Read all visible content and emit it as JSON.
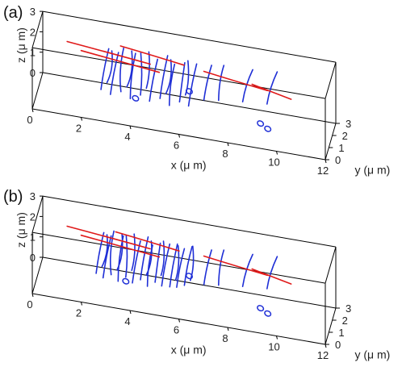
{
  "chart_data": [
    {
      "type": "line",
      "panel_label": "(a)",
      "xlabel": "x (μ m)",
      "ylabel": "y (μ m)",
      "zlabel": "z (μ m)",
      "xlim": [
        0,
        12
      ],
      "ylim": [
        0,
        3
      ],
      "zlim": [
        0,
        3
      ],
      "x_ticks": [
        "0",
        "2",
        "4",
        "6",
        "8",
        "10",
        "12"
      ],
      "y_ticks": [
        "0",
        "1",
        "2",
        "3"
      ],
      "z_ticks": [
        "0",
        "1",
        "2",
        "3"
      ],
      "colors": {
        "blue": "#1f2fd6",
        "red": "#e01a1a"
      },
      "blue_strands": [
        [
          [
            2.6,
            1.5,
            0.6
          ],
          [
            2.7,
            1.5,
            1.6
          ],
          [
            2.9,
            1.6,
            2.6
          ]
        ],
        [
          [
            3.0,
            1.4,
            0.5
          ],
          [
            3.1,
            1.5,
            1.5
          ],
          [
            3.3,
            1.6,
            2.5
          ]
        ],
        [
          [
            3.4,
            1.6,
            0.6
          ],
          [
            3.3,
            1.6,
            1.6
          ],
          [
            3.5,
            1.7,
            2.7
          ]
        ],
        [
          [
            3.8,
            1.5,
            0.4
          ],
          [
            3.8,
            1.5,
            1.5
          ],
          [
            4.0,
            1.6,
            2.6
          ]
        ],
        [
          [
            4.2,
            1.6,
            0.6
          ],
          [
            4.3,
            1.6,
            1.6
          ],
          [
            4.2,
            1.7,
            2.6
          ]
        ],
        [
          [
            4.6,
            1.4,
            0.5
          ],
          [
            4.7,
            1.5,
            1.5
          ],
          [
            4.9,
            1.6,
            2.5
          ]
        ],
        [
          [
            5.0,
            1.6,
            0.6
          ],
          [
            5.1,
            1.6,
            1.6
          ],
          [
            5.3,
            1.7,
            2.7
          ]
        ],
        [
          [
            5.4,
            1.5,
            0.4
          ],
          [
            5.4,
            1.5,
            1.4
          ],
          [
            5.6,
            1.6,
            2.4
          ]
        ],
        [
          [
            5.8,
            1.6,
            0.6
          ],
          [
            5.9,
            1.6,
            1.6
          ],
          [
            6.0,
            1.7,
            2.5
          ]
        ],
        [
          [
            6.2,
            1.4,
            0.6
          ],
          [
            6.3,
            1.5,
            1.6
          ],
          [
            6.5,
            1.6,
            2.6
          ]
        ],
        [
          [
            2.8,
            1.8,
            0.8
          ],
          [
            3.1,
            1.7,
            1.6
          ],
          [
            3.0,
            1.8,
            2.4
          ]
        ],
        [
          [
            3.6,
            1.9,
            0.7
          ],
          [
            3.9,
            1.8,
            1.5
          ],
          [
            3.8,
            1.9,
            2.5
          ]
        ],
        [
          [
            4.4,
            1.9,
            0.8
          ],
          [
            4.6,
            1.8,
            1.7
          ],
          [
            4.5,
            1.9,
            2.6
          ]
        ],
        [
          [
            5.2,
            1.9,
            0.7
          ],
          [
            5.5,
            1.8,
            1.5
          ],
          [
            5.4,
            1.9,
            2.4
          ]
        ],
        [
          [
            6.0,
            1.9,
            0.8
          ],
          [
            6.2,
            1.8,
            1.6
          ],
          [
            6.1,
            1.9,
            2.5
          ]
        ],
        [
          [
            6.8,
            1.6,
            0.9
          ],
          [
            6.9,
            1.6,
            1.8
          ],
          [
            7.1,
            1.7,
            2.6
          ]
        ],
        [
          [
            7.4,
            1.6,
            1.0
          ],
          [
            7.4,
            1.7,
            1.9
          ],
          [
            7.6,
            1.7,
            2.7
          ]
        ],
        [
          [
            8.4,
            1.5,
            1.2
          ],
          [
            8.5,
            1.6,
            2.0
          ],
          [
            8.8,
            1.6,
            2.8
          ]
        ],
        [
          [
            9.4,
            1.5,
            1.3
          ],
          [
            9.5,
            1.5,
            2.1
          ],
          [
            9.8,
            1.6,
            2.9
          ]
        ]
      ],
      "red_strands": [
        [
          [
            1.2,
            1.6,
            2.6
          ],
          [
            3.0,
            1.6,
            2.4
          ],
          [
            4.6,
            1.6,
            2.2
          ]
        ],
        [
          [
            1.8,
            1.4,
            2.4
          ],
          [
            3.4,
            1.4,
            2.2
          ],
          [
            5.0,
            1.4,
            2.0
          ]
        ],
        [
          [
            3.4,
            1.5,
            2.9
          ],
          [
            4.8,
            1.5,
            2.7
          ],
          [
            6.0,
            1.5,
            2.5
          ]
        ],
        [
          [
            6.8,
            1.6,
            2.3
          ],
          [
            8.0,
            1.6,
            2.1
          ],
          [
            9.4,
            1.6,
            1.9
          ]
        ],
        [
          [
            8.8,
            1.4,
            2.2
          ],
          [
            9.6,
            1.4,
            2.0
          ],
          [
            10.4,
            1.4,
            1.8
          ]
        ]
      ],
      "blue_loops": [
        [
          4.0,
          1.6,
          0.4
        ],
        [
          6.2,
          1.6,
          1.2
        ],
        [
          9.2,
          1.0,
          0.6
        ],
        [
          9.5,
          1.0,
          0.4
        ]
      ]
    },
    {
      "type": "line",
      "panel_label": "(b)",
      "xlabel": "x (μ m)",
      "ylabel": "y (μ m)",
      "zlabel": "z (μ m)",
      "xlim": [
        0,
        12
      ],
      "ylim": [
        0,
        3
      ],
      "zlim": [
        0,
        3
      ],
      "x_ticks": [
        "0",
        "2",
        "4",
        "6",
        "8",
        "10",
        "12"
      ],
      "y_ticks": [
        "0",
        "1",
        "2",
        "3"
      ],
      "z_ticks": [
        "0",
        "1",
        "2",
        "3"
      ],
      "colors": {
        "blue": "#1f2fd6",
        "red": "#e01a1a"
      },
      "blue_strands": [
        [
          [
            2.4,
            1.5,
            0.6
          ],
          [
            2.5,
            1.5,
            1.6
          ],
          [
            2.7,
            1.6,
            2.6
          ]
        ],
        [
          [
            2.7,
            1.4,
            0.5
          ],
          [
            2.8,
            1.5,
            1.5
          ],
          [
            3.0,
            1.6,
            2.5
          ]
        ],
        [
          [
            3.0,
            1.6,
            0.6
          ],
          [
            2.9,
            1.6,
            1.6
          ],
          [
            3.1,
            1.7,
            2.7
          ]
        ],
        [
          [
            3.3,
            1.5,
            0.4
          ],
          [
            3.3,
            1.5,
            1.5
          ],
          [
            3.5,
            1.6,
            2.6
          ]
        ],
        [
          [
            3.6,
            1.6,
            0.6
          ],
          [
            3.7,
            1.6,
            1.6
          ],
          [
            3.6,
            1.7,
            2.6
          ]
        ],
        [
          [
            3.9,
            1.4,
            0.5
          ],
          [
            4.0,
            1.5,
            1.5
          ],
          [
            4.2,
            1.6,
            2.5
          ]
        ],
        [
          [
            4.2,
            1.6,
            0.6
          ],
          [
            4.3,
            1.6,
            1.6
          ],
          [
            4.5,
            1.7,
            2.7
          ]
        ],
        [
          [
            4.5,
            1.5,
            0.4
          ],
          [
            4.5,
            1.5,
            1.4
          ],
          [
            4.7,
            1.6,
            2.4
          ]
        ],
        [
          [
            4.8,
            1.6,
            0.6
          ],
          [
            4.9,
            1.6,
            1.6
          ],
          [
            5.0,
            1.7,
            2.5
          ]
        ],
        [
          [
            5.1,
            1.4,
            0.6
          ],
          [
            5.2,
            1.5,
            1.6
          ],
          [
            5.4,
            1.6,
            2.6
          ]
        ],
        [
          [
            5.4,
            1.6,
            0.5
          ],
          [
            5.5,
            1.6,
            1.5
          ],
          [
            5.7,
            1.7,
            2.6
          ]
        ],
        [
          [
            5.7,
            1.5,
            0.6
          ],
          [
            5.8,
            1.5,
            1.6
          ],
          [
            6.0,
            1.6,
            2.5
          ]
        ],
        [
          [
            6.0,
            1.6,
            0.7
          ],
          [
            6.1,
            1.6,
            1.7
          ],
          [
            6.3,
            1.7,
            2.6
          ]
        ],
        [
          [
            2.6,
            1.8,
            0.8
          ],
          [
            2.9,
            1.7,
            1.6
          ],
          [
            2.8,
            1.8,
            2.4
          ]
        ],
        [
          [
            3.2,
            1.9,
            0.7
          ],
          [
            3.5,
            1.8,
            1.5
          ],
          [
            3.4,
            1.9,
            2.5
          ]
        ],
        [
          [
            3.8,
            1.9,
            0.8
          ],
          [
            4.0,
            1.8,
            1.7
          ],
          [
            3.9,
            1.9,
            2.6
          ]
        ],
        [
          [
            4.4,
            1.9,
            0.7
          ],
          [
            4.7,
            1.8,
            1.5
          ],
          [
            4.6,
            1.9,
            2.4
          ]
        ],
        [
          [
            5.0,
            1.9,
            0.8
          ],
          [
            5.2,
            1.8,
            1.6
          ],
          [
            5.1,
            1.9,
            2.5
          ]
        ],
        [
          [
            5.6,
            1.9,
            0.7
          ],
          [
            5.8,
            1.8,
            1.5
          ],
          [
            5.7,
            1.9,
            2.4
          ]
        ],
        [
          [
            6.2,
            1.9,
            0.8
          ],
          [
            6.4,
            1.8,
            1.6
          ],
          [
            6.3,
            1.9,
            2.5
          ]
        ],
        [
          [
            6.8,
            1.6,
            0.9
          ],
          [
            6.9,
            1.6,
            1.8
          ],
          [
            7.1,
            1.7,
            2.6
          ]
        ],
        [
          [
            7.4,
            1.6,
            1.0
          ],
          [
            7.4,
            1.7,
            1.9
          ],
          [
            7.6,
            1.7,
            2.7
          ]
        ],
        [
          [
            8.4,
            1.5,
            1.2
          ],
          [
            8.5,
            1.6,
            2.0
          ],
          [
            8.8,
            1.6,
            2.8
          ]
        ],
        [
          [
            9.4,
            1.5,
            1.3
          ],
          [
            9.5,
            1.5,
            2.1
          ],
          [
            9.8,
            1.6,
            2.9
          ]
        ]
      ],
      "red_strands": [
        [
          [
            1.2,
            1.6,
            2.6
          ],
          [
            3.0,
            1.6,
            2.4
          ],
          [
            4.6,
            1.6,
            2.2
          ]
        ],
        [
          [
            1.8,
            1.4,
            2.4
          ],
          [
            3.4,
            1.4,
            2.2
          ],
          [
            5.0,
            1.4,
            2.0
          ]
        ],
        [
          [
            3.2,
            1.5,
            2.8
          ],
          [
            4.6,
            1.5,
            2.6
          ],
          [
            5.8,
            1.5,
            2.4
          ]
        ],
        [
          [
            6.8,
            1.6,
            2.3
          ],
          [
            8.0,
            1.6,
            2.1
          ],
          [
            9.4,
            1.6,
            1.9
          ]
        ],
        [
          [
            8.8,
            1.4,
            2.2
          ],
          [
            9.6,
            1.4,
            2.0
          ],
          [
            10.4,
            1.4,
            1.8
          ]
        ]
      ],
      "blue_loops": [
        [
          3.6,
          1.6,
          0.4
        ],
        [
          6.2,
          1.6,
          1.2
        ],
        [
          9.2,
          1.0,
          0.6
        ],
        [
          9.5,
          1.0,
          0.4
        ]
      ]
    }
  ]
}
